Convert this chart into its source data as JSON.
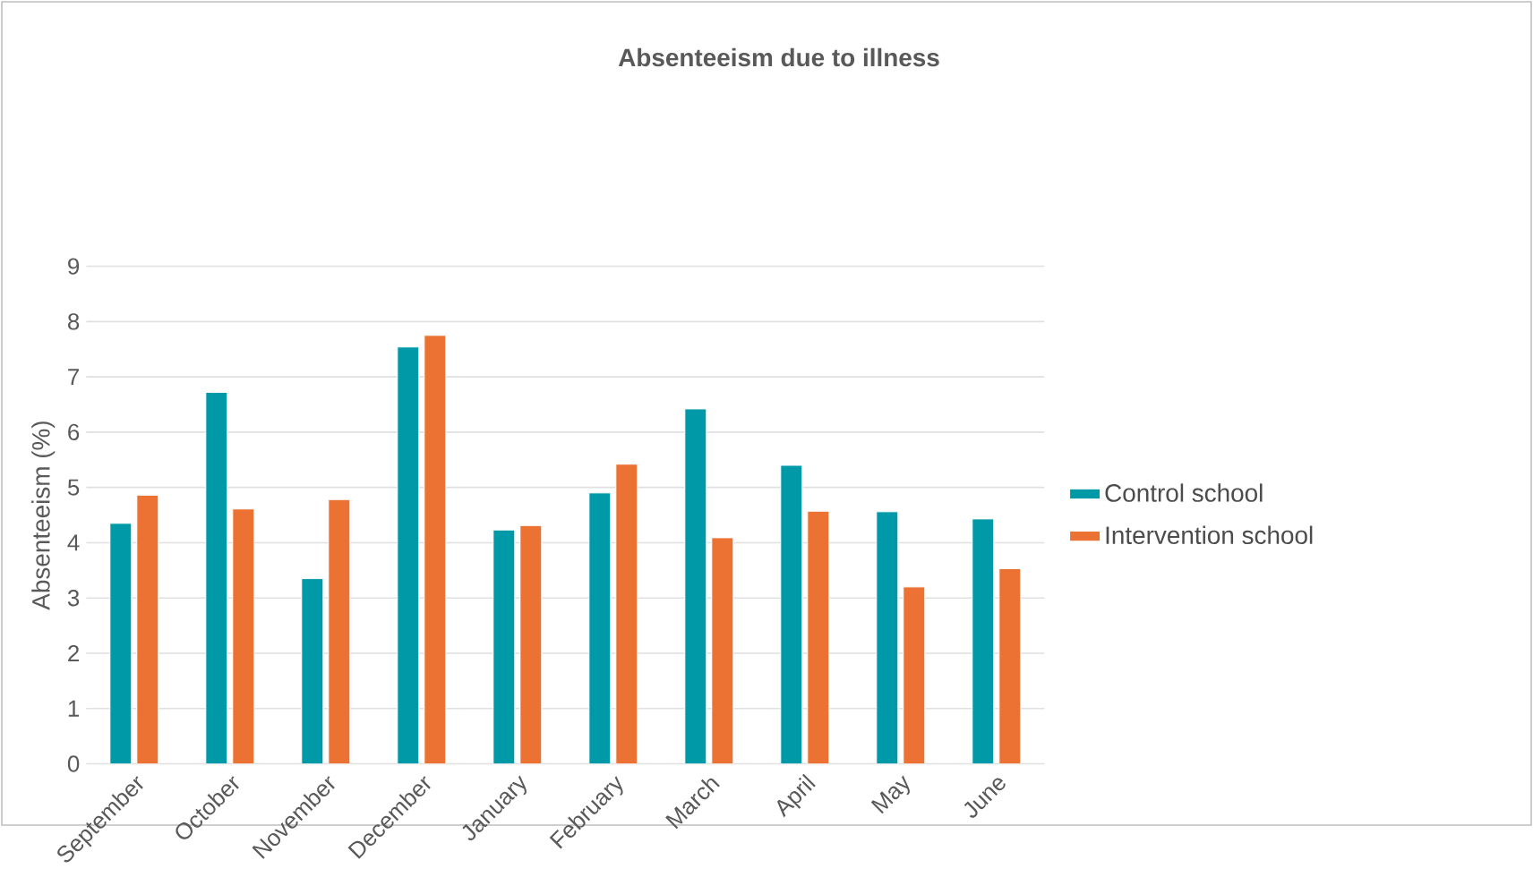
{
  "chart_data": {
    "type": "bar",
    "title": "Absenteeism due to illness",
    "ylabel": "Absenteeism (%)",
    "categories": [
      "September",
      "October",
      "November",
      "December",
      "January",
      "February",
      "March",
      "April",
      "May",
      "June"
    ],
    "series": [
      {
        "name": "Control school",
        "color": "#0099a8",
        "values": [
          4.35,
          6.72,
          3.35,
          7.54,
          4.23,
          4.9,
          6.42,
          5.4,
          4.56,
          4.43
        ]
      },
      {
        "name": "Intervention school",
        "color": "#eb7233",
        "values": [
          4.86,
          4.61,
          4.78,
          7.75,
          4.31,
          5.42,
          4.09,
          4.57,
          3.2,
          3.53
        ]
      }
    ],
    "ylim": [
      0,
      9
    ],
    "yticks": [
      0,
      1,
      2,
      3,
      4,
      5,
      6,
      7,
      8,
      9
    ],
    "grid": "y",
    "legend": "right"
  }
}
